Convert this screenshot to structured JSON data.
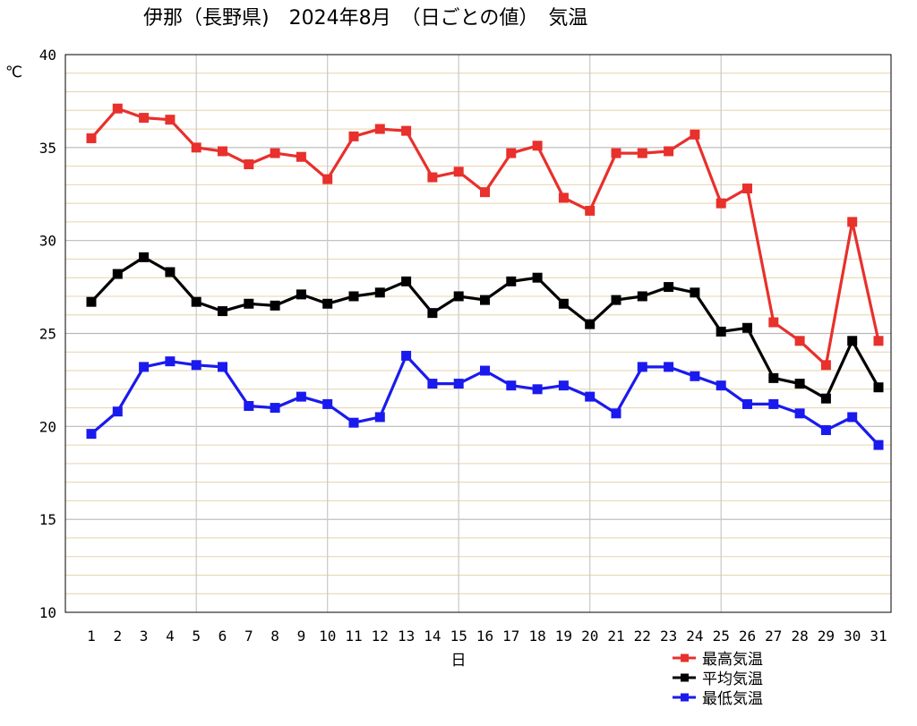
{
  "chart_data": {
    "type": "line",
    "title": "伊那（長野県)　2024年8月　（日ごとの値）　気温",
    "ylabel": "℃",
    "xlabel": "日",
    "ylim": [
      10,
      40
    ],
    "y_ticks": [
      "10",
      "15",
      "20",
      "25",
      "30",
      "35",
      "40"
    ],
    "x": [
      "1",
      "2",
      "3",
      "4",
      "5",
      "6",
      "7",
      "8",
      "9",
      "10",
      "11",
      "12",
      "13",
      "14",
      "15",
      "16",
      "17",
      "18",
      "19",
      "20",
      "21",
      "22",
      "23",
      "24",
      "25",
      "26",
      "27",
      "28",
      "29",
      "30",
      "31"
    ],
    "grid": true,
    "legend_position": "bottom-right",
    "series": [
      {
        "name": "最高気温",
        "color": "#e8302c",
        "values": [
          35.5,
          37.1,
          36.6,
          36.5,
          35.0,
          34.8,
          34.1,
          34.7,
          34.5,
          33.3,
          35.6,
          36.0,
          35.9,
          33.4,
          33.7,
          32.6,
          34.7,
          35.1,
          32.3,
          31.6,
          34.7,
          34.7,
          34.8,
          35.7,
          32.0,
          32.8,
          25.6,
          24.6,
          23.3,
          31.0,
          24.6
        ]
      },
      {
        "name": "平均気温",
        "color": "#000000",
        "values": [
          26.7,
          28.2,
          29.1,
          28.3,
          26.7,
          26.2,
          26.6,
          26.5,
          27.1,
          26.6,
          27.0,
          27.2,
          27.8,
          26.1,
          27.0,
          26.8,
          27.8,
          28.0,
          26.6,
          25.5,
          26.8,
          27.0,
          27.5,
          27.2,
          25.1,
          25.3,
          22.6,
          22.3,
          21.5,
          24.6,
          22.1
        ]
      },
      {
        "name": "最低気温",
        "color": "#1a1aee",
        "values": [
          19.6,
          20.8,
          23.2,
          23.5,
          23.3,
          23.2,
          21.1,
          21.0,
          21.6,
          21.2,
          20.2,
          20.5,
          23.8,
          22.3,
          22.3,
          23.0,
          22.2,
          22.0,
          22.2,
          21.6,
          20.7,
          23.2,
          23.2,
          22.7,
          22.2,
          21.2,
          21.2,
          20.7,
          19.8,
          20.5,
          19.0
        ]
      }
    ]
  }
}
